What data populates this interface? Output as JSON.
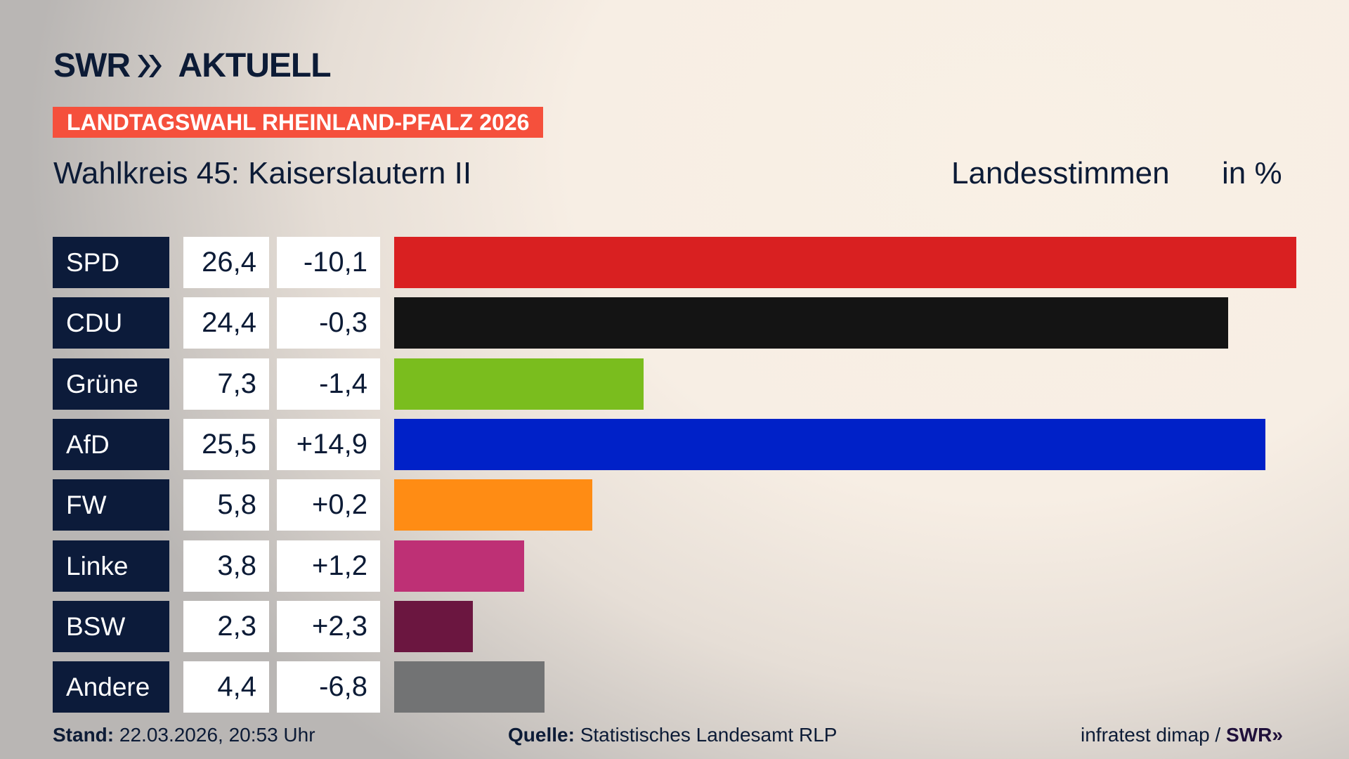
{
  "header": {
    "logo": "SWR AKTUELL",
    "banner": "LANDTAGSWAHL RHEINLAND-PFALZ 2026",
    "subtitle": "Wahlkreis 45: Kaiserslautern II",
    "vote_type": "Landesstimmen",
    "unit": "in %"
  },
  "chart_data": {
    "type": "bar",
    "orientation": "horizontal",
    "xlim": [
      0,
      26.4
    ],
    "categories": [
      "SPD",
      "CDU",
      "Grüne",
      "AfD",
      "FW",
      "Linke",
      "BSW",
      "Andere"
    ],
    "values": [
      26.4,
      24.4,
      7.3,
      25.5,
      5.8,
      3.8,
      2.3,
      4.4
    ],
    "value_labels": [
      "26,4",
      "24,4",
      "7,3",
      "25,5",
      "5,8",
      "3,8",
      "2,3",
      "4,4"
    ],
    "change_labels": [
      "-10,1",
      "-0,3",
      "-1,4",
      "+14,9",
      "+0,2",
      "+1,2",
      "+2,3",
      "-6,8"
    ],
    "colors": [
      "#d92021",
      "#141414",
      "#7abd1e",
      "#0021c8",
      "#ff8c14",
      "#be3075",
      "#6b1640",
      "#727374"
    ]
  },
  "footer": {
    "stand_label": "Stand:",
    "stand_value": "22.03.2026, 20:53 Uhr",
    "source_label": "Quelle:",
    "source_value": "Statistisches Landesamt RLP",
    "credit": "infratest dimap /",
    "credit_logo": "SWR"
  }
}
